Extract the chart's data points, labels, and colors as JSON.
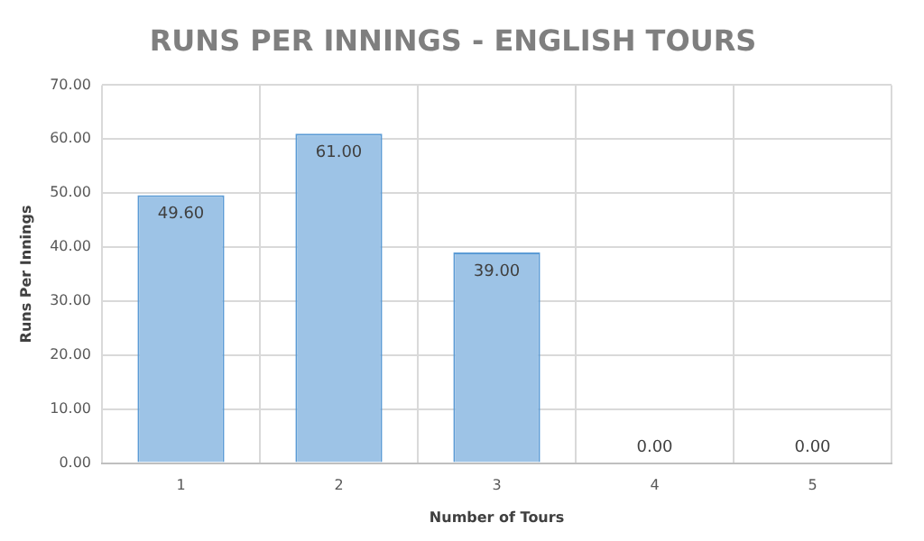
{
  "chart_data": {
    "type": "bar",
    "title": "RUNS PER INNINGS - ENGLISH TOURS",
    "xlabel": "Number of Tours",
    "ylabel": "Runs Per Innings",
    "categories": [
      "1",
      "2",
      "3",
      "4",
      "5"
    ],
    "values": [
      49.6,
      61,
      39,
      0,
      0
    ],
    "value_labels": [
      "49.60",
      "61.00",
      "39.00",
      "0.00",
      "0.00"
    ],
    "color": "#9dc3e6",
    "ylim": [
      0,
      70
    ],
    "yticks": [
      {
        "value": 0,
        "label": "0.00"
      },
      {
        "value": 10,
        "label": "10.00"
      },
      {
        "value": 20,
        "label": "20.00"
      },
      {
        "value": 30,
        "label": "30.00"
      },
      {
        "value": 40,
        "label": "40.00"
      },
      {
        "value": 50,
        "label": "50.00"
      },
      {
        "value": 60,
        "label": "60.00"
      },
      {
        "value": 70,
        "label": "70.00"
      }
    ],
    "grid": true,
    "legend": false
  }
}
